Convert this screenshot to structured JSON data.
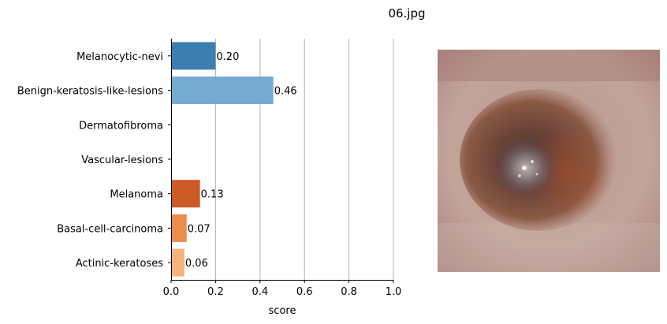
{
  "figure_title": "06.jpg",
  "chart_data": {
    "type": "bar",
    "orientation": "horizontal",
    "categories": [
      "Melanocytic-nevi",
      "Benign-keratosis-like-lesions",
      "Dermatofibroma",
      "Vascular-lesions",
      "Melanoma",
      "Basal-cell-carcinoma",
      "Actinic-keratoses"
    ],
    "values": [
      0.2,
      0.46,
      0.0,
      0.0,
      0.13,
      0.07,
      0.06
    ],
    "value_labels": [
      "0.20",
      "0.46",
      "",
      "",
      "0.13",
      "0.07",
      "0.06"
    ],
    "colors": [
      "#3d7eb1",
      "#76abcf",
      "#9ecae1",
      "#c6dbef",
      "#cc5a27",
      "#ec8c4d",
      "#f4b27e"
    ],
    "xlabel": "score",
    "xlim": [
      0.0,
      1.0
    ],
    "xticks": [
      "0.0",
      "0.2",
      "0.4",
      "0.6",
      "0.8",
      "1.0"
    ],
    "grid": "vertical"
  },
  "image_panel": {
    "description_icon": "skin-lesion-image"
  }
}
